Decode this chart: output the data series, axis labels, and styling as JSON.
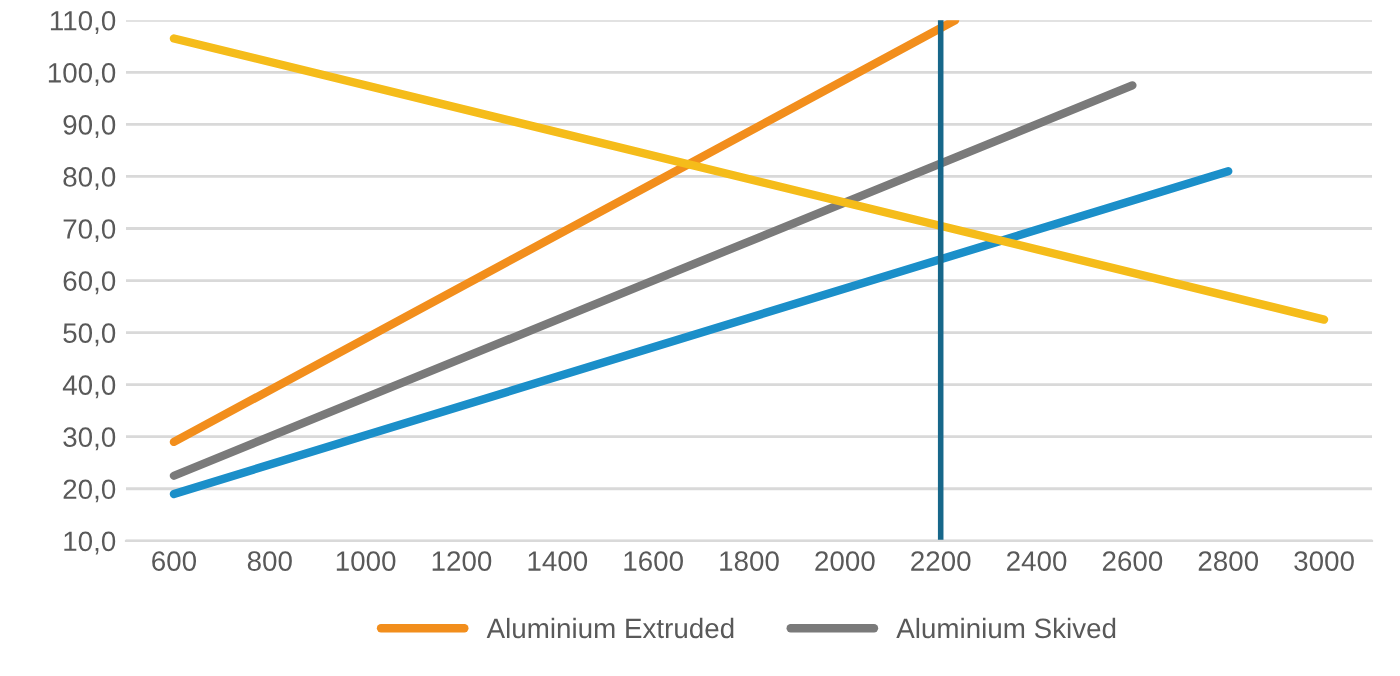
{
  "chart_data": {
    "type": "line",
    "series": [
      {
        "name": "Aluminium Extruded",
        "color": "#f28e1c",
        "x": [
          600,
          2230
        ],
        "values": [
          29,
          110
        ]
      },
      {
        "name": "Aluminium Skived",
        "color": "#7a7a7a",
        "x": [
          600,
          2600
        ],
        "values": [
          22.5,
          97.5
        ]
      },
      {
        "color": "#1b8fc9",
        "x": [
          600,
          2800
        ],
        "values": [
          19,
          81
        ]
      },
      {
        "color": "#f5bc1a",
        "x": [
          600,
          3000
        ],
        "values": [
          106.5,
          52.5
        ]
      }
    ],
    "xlim": [
      500,
      3100
    ],
    "xticks": [
      600,
      800,
      1000,
      1200,
      1400,
      1600,
      1800,
      2000,
      2200,
      2400,
      2600,
      2800,
      3000
    ],
    "ylim": [
      10,
      110
    ],
    "yticks": [
      {
        "value": 10,
        "label": "10,0"
      },
      {
        "value": 20,
        "label": "20,0"
      },
      {
        "value": 30,
        "label": "30,0"
      },
      {
        "value": 40,
        "label": "40,0"
      },
      {
        "value": 50,
        "label": "50,0"
      },
      {
        "value": 60,
        "label": "60,0"
      },
      {
        "value": 70,
        "label": "70,0"
      },
      {
        "value": 80,
        "label": "80,0"
      },
      {
        "value": 90,
        "label": "90,0"
      },
      {
        "value": 100,
        "label": "100,0"
      },
      {
        "value": 110,
        "label": "110,0"
      }
    ],
    "ref_lines": [
      {
        "axis": "x",
        "value": 2200,
        "color": "#17678a"
      }
    ],
    "grid": "y",
    "legend": "bottom",
    "marker": "none",
    "line_style": "solid"
  }
}
